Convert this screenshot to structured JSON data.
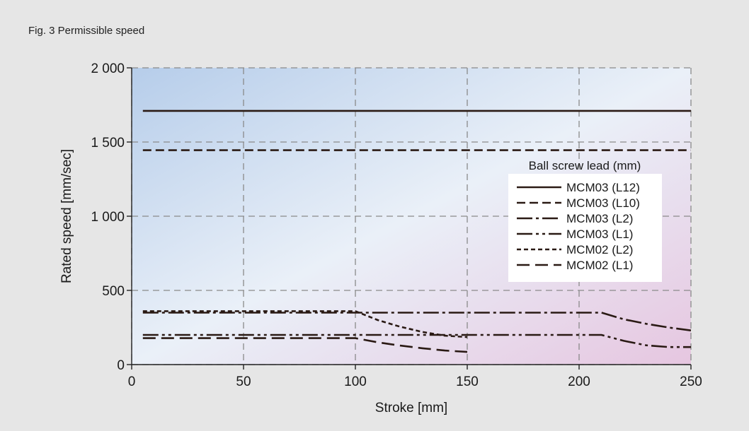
{
  "figure": {
    "caption": "Fig. 3  Permissible speed"
  },
  "colors": {
    "background": "#e6e6e6",
    "plot_bg_top_left": "#b6cdea",
    "plot_bg_bottom_right": "#e6c6e0",
    "line": "#2a1a14",
    "grid": "#8a8a8a"
  },
  "chart_data": {
    "type": "line",
    "title": "",
    "xlabel": "Stroke [mm]",
    "ylabel": "Rated speed [mm/sec]",
    "xlim": [
      0,
      250
    ],
    "ylim": [
      0,
      2000
    ],
    "x_ticks": [
      0,
      50,
      100,
      150,
      200,
      250
    ],
    "y_ticks": [
      0,
      500,
      1000,
      1500,
      2000
    ],
    "y_tick_labels": [
      "0",
      "500",
      "1 000",
      "1 500",
      "2 000"
    ],
    "grid": true,
    "legend": {
      "title": "Ball screw lead (mm)",
      "position": "right"
    },
    "series": [
      {
        "name": "MCM03 (L12)",
        "style": "solid",
        "x": [
          5,
          250
        ],
        "y": [
          1710,
          1710
        ]
      },
      {
        "name": "MCM03 (L10)",
        "style": "dashed",
        "x": [
          5,
          250
        ],
        "y": [
          1445,
          1445
        ]
      },
      {
        "name": "MCM03 (L2)",
        "style": "dashdot",
        "x": [
          5,
          210,
          220,
          230,
          240,
          250
        ],
        "y": [
          350,
          350,
          305,
          275,
          250,
          230
        ]
      },
      {
        "name": "MCM03 (L1)",
        "style": "dashdotdot",
        "x": [
          5,
          210,
          220,
          230,
          240,
          250
        ],
        "y": [
          200,
          200,
          160,
          130,
          118,
          118
        ]
      },
      {
        "name": "MCM02 (L2)",
        "style": "dotted",
        "x": [
          5,
          100,
          110,
          120,
          130,
          140,
          150
        ],
        "y": [
          360,
          360,
          300,
          255,
          220,
          195,
          185
        ]
      },
      {
        "name": "MCM02 (L1)",
        "style": "longdash",
        "x": [
          5,
          100,
          110,
          120,
          130,
          140,
          150
        ],
        "y": [
          178,
          178,
          150,
          128,
          110,
          95,
          85
        ]
      }
    ]
  }
}
